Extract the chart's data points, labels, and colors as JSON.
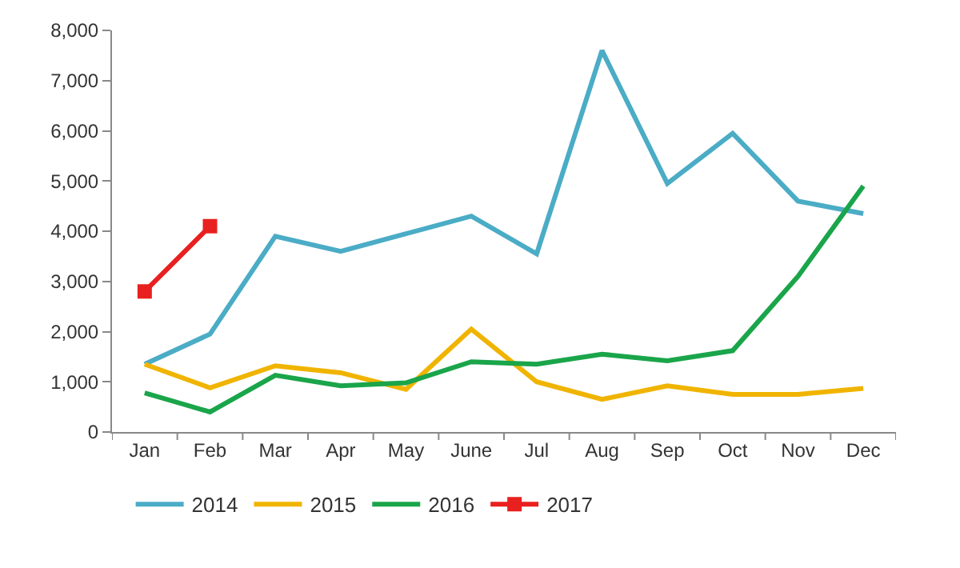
{
  "chart_data": {
    "type": "line",
    "categories": [
      "Jan",
      "Feb",
      "Mar",
      "Apr",
      "May",
      "June",
      "Jul",
      "Aug",
      "Sep",
      "Oct",
      "Nov",
      "Dec"
    ],
    "series": [
      {
        "name": "2014",
        "color": "#4bacc6",
        "values": [
          1350,
          1950,
          3900,
          3600,
          3950,
          4300,
          3550,
          7600,
          4950,
          5950,
          4600,
          4350
        ]
      },
      {
        "name": "2015",
        "color": "#f0b400",
        "values": [
          1350,
          880,
          1320,
          1180,
          850,
          2050,
          1000,
          650,
          920,
          750,
          750,
          870
        ]
      },
      {
        "name": "2016",
        "color": "#1aa54a",
        "values": [
          780,
          400,
          1130,
          920,
          980,
          1400,
          1350,
          1550,
          1420,
          1620,
          3100,
          4900
        ]
      },
      {
        "name": "2017",
        "color": "#e8201f",
        "marker": "square",
        "values": [
          2800,
          4100,
          null,
          null,
          null,
          null,
          null,
          null,
          null,
          null,
          null,
          null
        ]
      }
    ],
    "ylim": [
      0,
      8000
    ],
    "yticks": [
      {
        "value": 0,
        "label": "0"
      },
      {
        "value": 1000,
        "label": "1,000"
      },
      {
        "value": 2000,
        "label": "2,000"
      },
      {
        "value": 3000,
        "label": "3,000"
      },
      {
        "value": 4000,
        "label": "4,000"
      },
      {
        "value": 5000,
        "label": "5,000"
      },
      {
        "value": 6000,
        "label": "6,000"
      },
      {
        "value": 7000,
        "label": "7,000"
      },
      {
        "value": 8000,
        "label": "8,000"
      }
    ],
    "grid": false,
    "legend": "bottom",
    "marker": "none",
    "line_style": "solid"
  }
}
